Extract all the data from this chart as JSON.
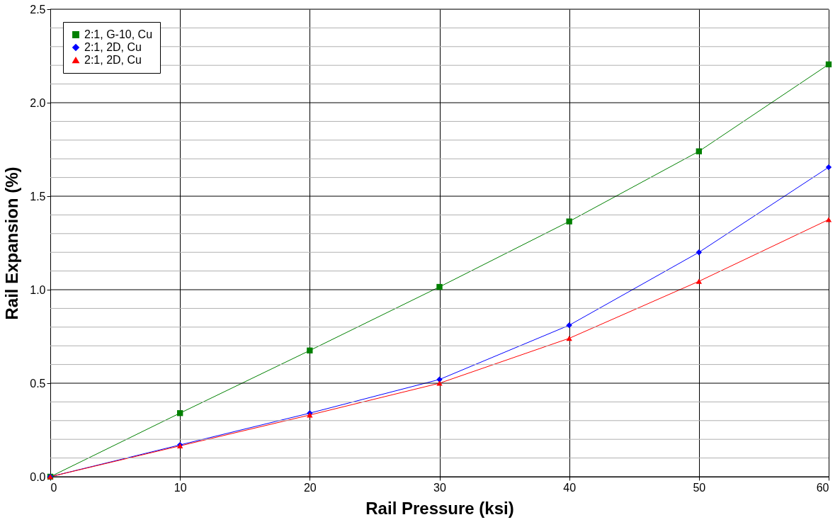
{
  "chart_data": {
    "type": "line",
    "xlabel": "Rail Pressure (ksi)",
    "ylabel": "Rail Expansion (%)",
    "x": [
      0,
      10,
      20,
      30,
      40,
      50,
      60
    ],
    "series": [
      {
        "name": "2:1, G-10, Cu",
        "color": "#008000",
        "marker": "square",
        "values": [
          0,
          0.34,
          0.675,
          1.015,
          1.365,
          1.74,
          2.205
        ]
      },
      {
        "name": "2:1, 2D, Cu",
        "color": "#0000ff",
        "marker": "diamond",
        "values": [
          0,
          0.17,
          0.34,
          0.52,
          0.81,
          1.2,
          1.655
        ]
      },
      {
        "name": "2:1, 2D, Cu ",
        "color": "#ff0000",
        "marker": "triangle",
        "values": [
          0,
          0.165,
          0.33,
          0.5,
          0.74,
          1.045,
          1.375
        ]
      }
    ],
    "xlim": [
      0,
      60
    ],
    "xticks": [
      0,
      10,
      20,
      30,
      40,
      50,
      60
    ],
    "ylim": [
      0,
      2.5
    ],
    "yticks": [
      {
        "value": 0,
        "label": "0.0"
      },
      {
        "value": 0.1,
        "label": null
      },
      {
        "value": 0.2,
        "label": null
      },
      {
        "value": 0.3,
        "label": null
      },
      {
        "value": 0.4,
        "label": null
      },
      {
        "value": 0.5,
        "label": "0.5"
      },
      {
        "value": 0.6,
        "label": null
      },
      {
        "value": 0.7,
        "label": null
      },
      {
        "value": 0.8,
        "label": null
      },
      {
        "value": 0.9,
        "label": null
      },
      {
        "value": 1,
        "label": "1.0"
      },
      {
        "value": 1.1,
        "label": null
      },
      {
        "value": 1.2,
        "label": null
      },
      {
        "value": 1.3,
        "label": null
      },
      {
        "value": 1.4,
        "label": null
      },
      {
        "value": 1.5,
        "label": "1.5"
      },
      {
        "value": 1.6,
        "label": null
      },
      {
        "value": 1.7,
        "label": null
      },
      {
        "value": 1.8,
        "label": null
      },
      {
        "value": 1.9,
        "label": null
      },
      {
        "value": 2,
        "label": "2.0"
      },
      {
        "value": 2.1,
        "label": null
      },
      {
        "value": 2.2,
        "label": null
      },
      {
        "value": 2.3,
        "label": null
      },
      {
        "value": 2.4,
        "label": null
      },
      {
        "value": 2.5,
        "label": "2.5"
      }
    ],
    "grid": true,
    "legend": "top left",
    "line_style": "solid"
  }
}
